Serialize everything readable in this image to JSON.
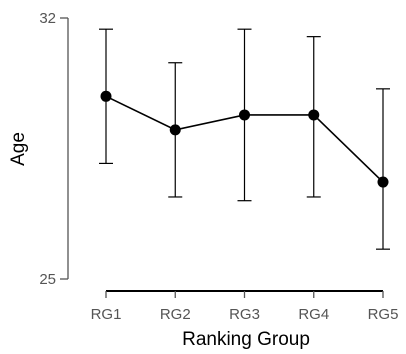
{
  "chart_data": {
    "type": "line",
    "title": "",
    "xlabel": "Ranking Group",
    "ylabel": "Age",
    "categories": [
      "RG1",
      "RG2",
      "RG3",
      "RG4",
      "RG5"
    ],
    "series": [
      {
        "values": [
          29.9,
          29.0,
          29.4,
          29.4,
          27.6
        ],
        "error_low": [
          28.1,
          27.2,
          27.1,
          27.2,
          25.8
        ],
        "error_high": [
          31.7,
          30.8,
          31.7,
          31.5,
          30.1
        ]
      }
    ],
    "ylim": [
      25,
      32
    ],
    "yticks": [
      25,
      32
    ],
    "grid": false,
    "colors": {
      "line": "#000000",
      "marker": "#000000",
      "axis": "#555555"
    }
  }
}
